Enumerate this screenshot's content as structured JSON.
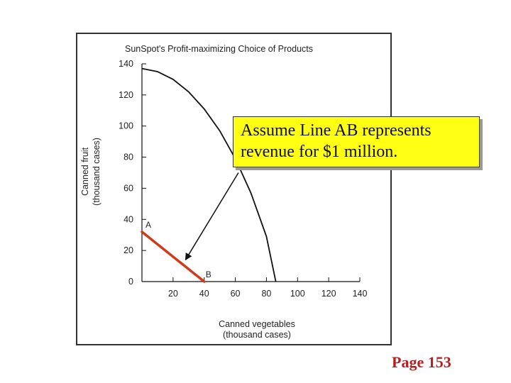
{
  "chart_data": {
    "type": "line",
    "title": "SunSpot's Profit-maximizing Choice of Products",
    "xlabel": [
      "Canned vegetables",
      "(thousand cases)"
    ],
    "ylabel": [
      "Canned fruit",
      "(thousand cases)"
    ],
    "xlim": [
      0,
      140
    ],
    "ylim": [
      0,
      140
    ],
    "xticks": [
      20,
      40,
      60,
      80,
      100,
      120,
      140
    ],
    "yticks": [
      0,
      20,
      40,
      60,
      80,
      100,
      120,
      140
    ],
    "grid": false,
    "series": [
      {
        "x": [
          0,
          10,
          20,
          30,
          40,
          50,
          60,
          70,
          80,
          86
        ],
        "y": [
          137,
          135,
          130,
          122,
          111,
          97,
          79,
          57,
          29,
          0
        ],
        "color": "#111111"
      },
      {
        "x": [
          0,
          40
        ],
        "y": [
          32,
          0
        ],
        "color": "#d03a1a",
        "point_labels": [
          "A",
          "B"
        ]
      }
    ],
    "annotations": [
      {
        "type": "arrow",
        "from": [
          62,
          70
        ],
        "to": [
          28,
          14
        ]
      }
    ]
  },
  "callout": {
    "text": "Assume Line AB represents\nrevenue for $1 million.",
    "background": "#ffff14"
  },
  "page_label": "Page 153",
  "colors": {
    "line_ab": "#d03a1a",
    "page_label": "#b22222",
    "frame": "#333333"
  }
}
